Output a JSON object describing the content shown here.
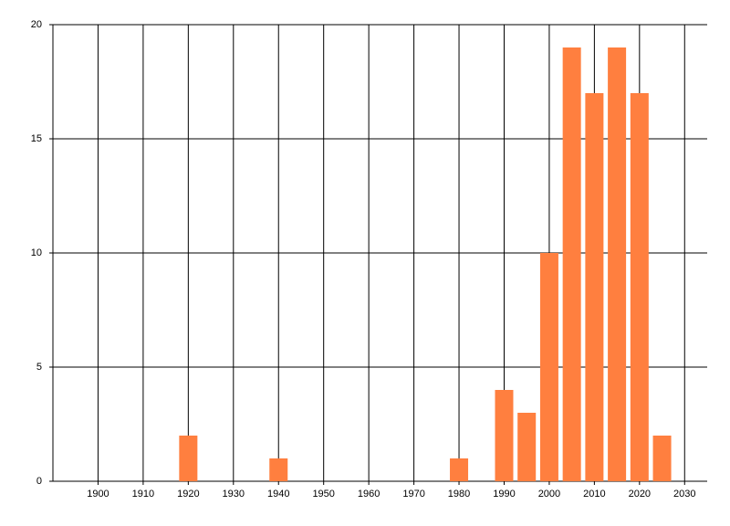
{
  "chart_data": {
    "type": "bar",
    "x": [
      1920,
      1940,
      1980,
      1990,
      1995,
      2000,
      2005,
      2010,
      2015,
      2020,
      2025
    ],
    "values": [
      2,
      1,
      1,
      4,
      3,
      10,
      19,
      17,
      19,
      17,
      2
    ],
    "color": "#ff7f3f",
    "xlim": [
      1890,
      2035
    ],
    "xticks": [
      1900,
      1910,
      1920,
      1930,
      1940,
      1950,
      1960,
      1970,
      1980,
      1990,
      2000,
      2010,
      2020,
      2030
    ],
    "ylim": [
      0,
      20
    ],
    "yticks": [
      0,
      5,
      10,
      15,
      20
    ],
    "grid": true
  }
}
